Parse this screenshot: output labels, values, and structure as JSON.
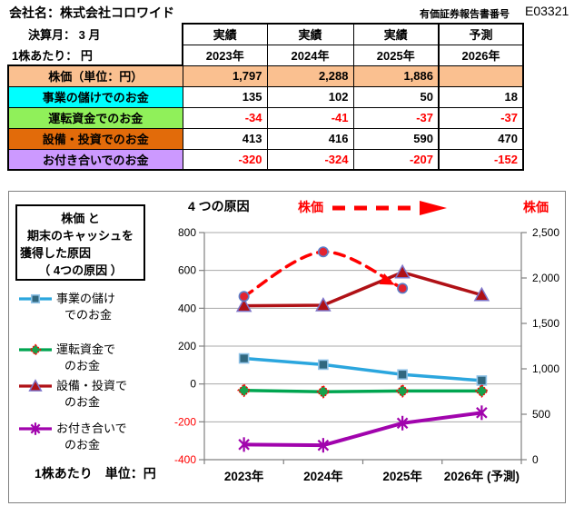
{
  "header": {
    "company": "会社名：株式会社コロワイド",
    "report_label": "有価証券報告書番号",
    "report_number": "E03321"
  },
  "table": {
    "corner": {
      "line1": "決算月： 3 月",
      "line2": "1株あたり： 円"
    },
    "columns": [
      {
        "status": "実績",
        "year": "2023年"
      },
      {
        "status": "実績",
        "year": "2024年"
      },
      {
        "status": "実績",
        "year": "2025年"
      },
      {
        "status": "予測",
        "year": "2026年"
      }
    ],
    "rows": [
      {
        "label": "株価（単位：円）",
        "color": "#FAC090",
        "values": [
          "1,797",
          "2,288",
          "1,886",
          ""
        ]
      },
      {
        "label": "事業の儲けでのお金",
        "color": "#00FFFF",
        "values": [
          "135",
          "102",
          "50",
          "18"
        ]
      },
      {
        "label": "運転資金でのお金",
        "color": "#90F05A",
        "values": [
          "-34",
          "-41",
          "-37",
          "-37"
        ]
      },
      {
        "label": "設備・投資でのお金",
        "color": "#E26B0A",
        "values": [
          "413",
          "416",
          "590",
          "470"
        ]
      },
      {
        "label": "お付き合いでのお金",
        "color": "#CC99FF",
        "values": [
          "-320",
          "-324",
          "-207",
          "-152"
        ]
      }
    ]
  },
  "chart": {
    "title_lines": [
      "株価 と",
      "期末のキャッシュを",
      "獲得した原因",
      "（ 4つの原因 ）"
    ],
    "top_label": "4 つの原因",
    "price_label": "株価",
    "price_label_right": "株価",
    "unit_label": "1株あたり　単位：円",
    "legend": [
      {
        "line1": "事業の儲け",
        "line2": "でのお金"
      },
      {
        "line1": "運転資金で",
        "line2": "のお金"
      },
      {
        "line1": "設備・投資で",
        "line2": "のお金"
      },
      {
        "line1": "お付き合いで",
        "line2": "のお金"
      }
    ],
    "colors": {
      "accent_red": "#FF0000",
      "grid": "#A8A8A8",
      "axis": "#808080",
      "negative_tick": "#FF0000"
    }
  },
  "chart_data": {
    "type": "line",
    "categories": [
      "2023年",
      "2024年",
      "2025年",
      "2026年 (予測)"
    ],
    "left_axis": {
      "min": -400,
      "max": 800,
      "step": 200,
      "ticks": [
        {
          "v": 800,
          "label": "800"
        },
        {
          "v": 600,
          "label": "600"
        },
        {
          "v": 400,
          "label": "400"
        },
        {
          "v": 200,
          "label": "200"
        },
        {
          "v": 0,
          "label": "0"
        },
        {
          "v": -200,
          "label": "-200"
        },
        {
          "v": -400,
          "label": "-400"
        }
      ]
    },
    "right_axis": {
      "min": 0,
      "max": 2500,
      "step": 500,
      "ticks": [
        {
          "v": 2500,
          "label": "2,500"
        },
        {
          "v": 2000,
          "label": "2,000"
        },
        {
          "v": 1500,
          "label": "1,500"
        },
        {
          "v": 1000,
          "label": "1,000"
        },
        {
          "v": 500,
          "label": "500"
        },
        {
          "v": 0,
          "label": "0"
        }
      ]
    },
    "grid": true,
    "legend_position": "left",
    "series": [
      {
        "name": "事業の儲けでのお金",
        "axis": "left",
        "color": "#2BA6DE",
        "width": 3.5,
        "marker": "square",
        "marker_fill": "#31687F",
        "marker_stroke": "#8FC3E8",
        "values": [
          135,
          102,
          50,
          18
        ]
      },
      {
        "name": "運転資金でのお金",
        "axis": "left",
        "color": "#00A550",
        "width": 3.5,
        "marker": "diamond",
        "marker_fill": "#16A24B",
        "marker_stroke": "#FF0000",
        "values": [
          -34,
          -41,
          -37,
          -37
        ]
      },
      {
        "name": "お付き合いでのお金",
        "axis": "left",
        "color": "#A104AD",
        "width": 4,
        "marker": "asterisk",
        "marker_fill": "#A104AD",
        "marker_stroke": "#A104AD",
        "values": [
          -320,
          -324,
          -207,
          -152
        ]
      },
      {
        "name": "設備・投資でのお金",
        "axis": "left",
        "color": "#B01116",
        "width": 3.5,
        "marker": "triangle",
        "marker_fill": "#AE1116",
        "marker_stroke": "#7E74C9",
        "values": [
          413,
          416,
          590,
          470
        ]
      },
      {
        "name": "株価",
        "axis": "right",
        "color": "#FF0000",
        "width": 3.5,
        "marker": "circle",
        "marker_fill": "#E32330",
        "marker_stroke": "#5B7EC9",
        "dashed": true,
        "smooth": true,
        "arrow": true,
        "values": [
          1797,
          2288,
          1886,
          null
        ]
      }
    ]
  }
}
